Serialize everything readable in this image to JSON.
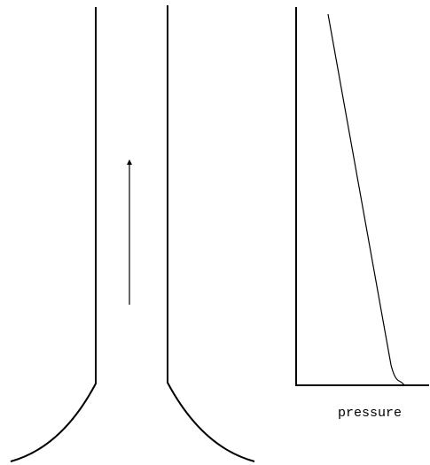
{
  "graph": {
    "x_axis_label": "pressure"
  }
}
